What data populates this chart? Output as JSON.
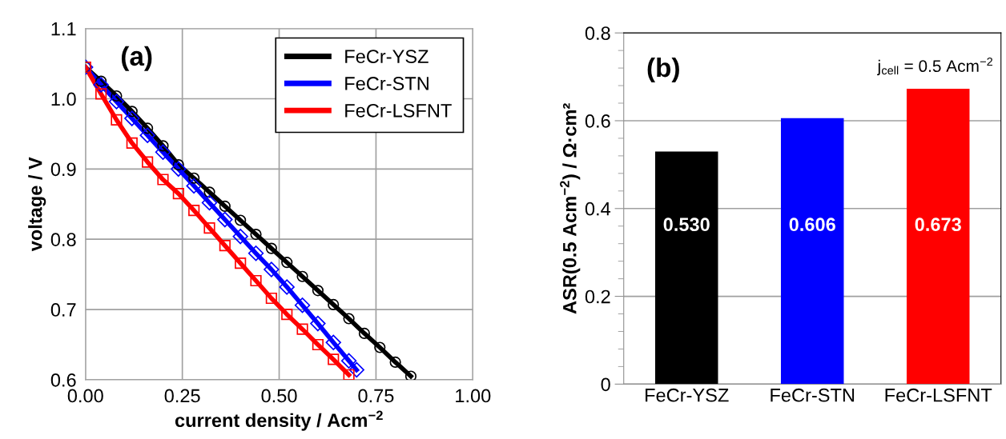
{
  "chart_data": [
    {
      "type": "line",
      "xlabel": "current density / Acm$^{−2}$",
      "ylabel": "voltage / V",
      "annotations": [
        "(a)"
      ],
      "xlim": [
        0,
        1
      ],
      "ylim": [
        0.6,
        1.1
      ],
      "xticks": [
        {
          "value": 0,
          "label": "0.00"
        },
        {
          "value": 0.25,
          "label": "0.25"
        },
        {
          "value": 0.5,
          "label": "0.50"
        },
        {
          "value": 0.75,
          "label": "0.75"
        },
        {
          "value": 1,
          "label": "1.00"
        }
      ],
      "yticks": [
        {
          "value": 0.6,
          "label": "0.6"
        },
        {
          "value": 0.7,
          "label": "0.7"
        },
        {
          "value": 0.8,
          "label": "0.8"
        },
        {
          "value": 0.9,
          "label": "0.9"
        },
        {
          "value": 1.0,
          "label": "1.0"
        },
        {
          "value": 1.1,
          "label": "1.1"
        }
      ],
      "grid": true,
      "legend": "top right",
      "line_style": "solid",
      "series": [
        {
          "name": "FeCr-YSZ",
          "color": "#000000",
          "marker": "circle",
          "x": [
            0,
            0.04,
            0.08,
            0.12,
            0.16,
            0.2,
            0.24,
            0.28,
            0.32,
            0.36,
            0.4,
            0.44,
            0.48,
            0.52,
            0.56,
            0.6,
            0.64,
            0.68,
            0.72,
            0.76,
            0.8,
            0.84
          ],
          "values": [
            1.045,
            1.025,
            1.004,
            0.982,
            0.958,
            0.933,
            0.906,
            0.887,
            0.867,
            0.847,
            0.827,
            0.807,
            0.787,
            0.767,
            0.747,
            0.727,
            0.707,
            0.687,
            0.666,
            0.646,
            0.625,
            0.605
          ]
        },
        {
          "name": "FeCr-STN",
          "color": "#0000ff",
          "marker": "diamond",
          "x": [
            0,
            0.04,
            0.08,
            0.12,
            0.16,
            0.2,
            0.24,
            0.28,
            0.32,
            0.36,
            0.4,
            0.44,
            0.48,
            0.52,
            0.56,
            0.6,
            0.64,
            0.68,
            0.7
          ],
          "values": [
            1.045,
            1.02,
            0.996,
            0.972,
            0.948,
            0.924,
            0.9,
            0.876,
            0.852,
            0.828,
            0.804,
            0.78,
            0.757,
            0.732,
            0.706,
            0.68,
            0.653,
            0.627,
            0.614
          ]
        },
        {
          "name": "FeCr-LSFNT",
          "color": "#ff0000",
          "marker": "square",
          "x": [
            0,
            0.04,
            0.08,
            0.12,
            0.16,
            0.2,
            0.24,
            0.28,
            0.32,
            0.36,
            0.4,
            0.44,
            0.48,
            0.52,
            0.56,
            0.6,
            0.64,
            0.68
          ],
          "values": [
            1.045,
            1.007,
            0.97,
            0.937,
            0.91,
            0.885,
            0.865,
            0.841,
            0.816,
            0.791,
            0.766,
            0.741,
            0.716,
            0.693,
            0.672,
            0.65,
            0.629,
            0.607
          ]
        }
      ]
    },
    {
      "type": "bar",
      "ylabel": "ASR(0.5 Acm$^{−2}$) / Ω·cm²",
      "annotations": [
        "(b)",
        "j$_{cell}$ = 0.5 Acm$^{−2}$"
      ],
      "categories": [
        "FeCr-YSZ",
        "FeCr-STN",
        "FeCr-LSFNT"
      ],
      "values": [
        0.53,
        0.606,
        0.673
      ],
      "colors": [
        "#000000",
        "#0000ff",
        "#ff0000"
      ],
      "value_labels": [
        "0.530",
        "0.606",
        "0.673"
      ],
      "ylim": [
        0,
        0.8
      ],
      "yticks": [
        0,
        {
          "value": 0.2,
          "label": "0.2"
        },
        {
          "value": 0.4,
          "label": "0.4"
        },
        {
          "value": 0.6,
          "label": "0.6"
        },
        {
          "value": 0.8,
          "label": "0.8"
        }
      ],
      "grid": "y"
    }
  ]
}
